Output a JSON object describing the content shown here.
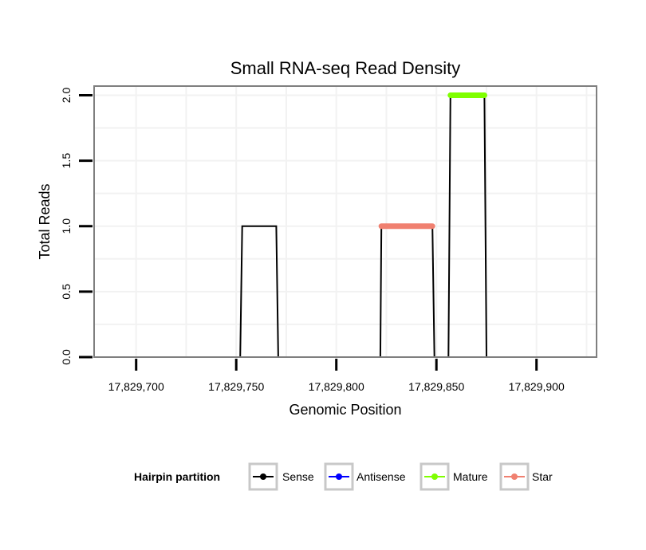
{
  "chart_data": {
    "type": "line",
    "title": "Small RNA-seq Read Density",
    "xlabel": "Genomic Position",
    "ylabel": "Total Reads",
    "xlim": [
      17829679,
      17829930
    ],
    "ylim": [
      0,
      2.07
    ],
    "x_ticks": [
      17829700,
      17829750,
      17829800,
      17829850,
      17829900
    ],
    "x_tick_labels": [
      "17,829,700",
      "17,829,750",
      "17,829,800",
      "17,829,850",
      "17,829,900"
    ],
    "y_ticks": [
      0,
      0.5,
      1,
      1.5,
      2
    ],
    "y_tick_labels": [
      "0.0",
      "0.5",
      "1.0",
      "1.5",
      "2.0"
    ],
    "grid": true,
    "legend": {
      "title": "Hairpin partition",
      "position": "bottom",
      "entries": [
        "Sense",
        "Antisense",
        "Mature",
        "Star"
      ]
    },
    "series": [
      {
        "name": "Sense",
        "color": "#000000",
        "style": "line",
        "x": [
          17829692,
          17829752,
          17829753,
          17829770,
          17829771,
          17829822,
          17829822.5,
          17829848,
          17829849,
          17829856,
          17829857,
          17829874,
          17829875,
          17829928
        ],
        "y": [
          0,
          0,
          1,
          1,
          0,
          0,
          1,
          1,
          0,
          0,
          2,
          2,
          0,
          0
        ]
      },
      {
        "name": "Antisense",
        "color": "#0000ff",
        "style": "line",
        "x": [
          17829752,
          17829771,
          17829822,
          17829848,
          17829856,
          17829874
        ],
        "y": [
          0,
          0,
          0,
          0,
          0,
          0
        ],
        "segments": [
          [
            17829752,
            17829771
          ],
          [
            17829822,
            17829848
          ],
          [
            17829856,
            17829874
          ]
        ]
      },
      {
        "name": "Mature",
        "color": "#7fff00",
        "style": "points",
        "x": [
          17829857,
          17829874
        ],
        "y": [
          2,
          2
        ]
      },
      {
        "name": "Star",
        "color": "#f08070",
        "style": "points",
        "x": [
          17829822.5,
          17829848
        ],
        "y": [
          1,
          1
        ]
      }
    ]
  }
}
